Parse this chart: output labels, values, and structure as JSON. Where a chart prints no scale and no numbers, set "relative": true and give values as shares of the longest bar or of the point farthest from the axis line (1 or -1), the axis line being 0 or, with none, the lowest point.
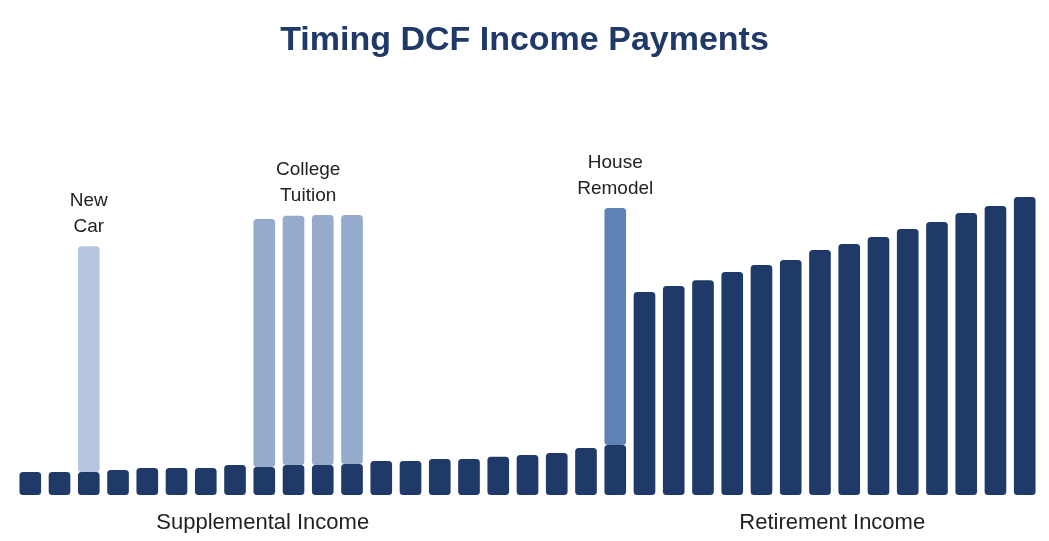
{
  "chart_data": {
    "type": "bar",
    "title": "Timing DCF Income Payments",
    "relative": true,
    "stacked": true,
    "categories": [
      null,
      null,
      null,
      null,
      null,
      null,
      null,
      null,
      null,
      null,
      null,
      null,
      null,
      null,
      null,
      null,
      null,
      null,
      null,
      null,
      null,
      null,
      null,
      null,
      null,
      null,
      null,
      null,
      null,
      null,
      null,
      null,
      null,
      null,
      null
    ],
    "series": [
      {
        "color": "#1f3a68",
        "values": [
          0.077,
          0.077,
          0.077,
          0.084,
          0.091,
          0.091,
          0.091,
          0.101,
          0.094,
          0.101,
          0.101,
          0.104,
          0.114,
          0.114,
          0.121,
          0.121,
          0.128,
          0.134,
          0.141,
          0.158,
          0.168,
          0.681,
          0.701,
          0.721,
          0.748,
          0.772,
          0.789,
          0.822,
          0.842,
          0.866,
          0.893,
          0.916,
          0.946,
          0.97,
          1
        ]
      },
      {
        "name": "New Car",
        "color": "#b5c6de",
        "values": [
          null,
          null,
          0.758,
          null,
          null,
          null,
          null,
          null,
          null,
          null,
          null,
          null,
          null,
          null,
          null,
          null,
          null,
          null,
          null,
          null,
          null,
          null,
          null,
          null,
          null,
          null,
          null,
          null,
          null,
          null,
          null,
          null,
          null,
          null,
          null
        ]
      },
      {
        "name": "College Tuition",
        "color": "#95abcb",
        "values": [
          null,
          null,
          null,
          null,
          null,
          null,
          null,
          null,
          0.832,
          0.836,
          0.839,
          0.836,
          null,
          null,
          null,
          null,
          null,
          null,
          null,
          null,
          null,
          null,
          null,
          null,
          null,
          null,
          null,
          null,
          null,
          null,
          null,
          null,
          null,
          null,
          null
        ]
      },
      {
        "name": "House Remodel",
        "color": "#5f82b5",
        "values": [
          null,
          null,
          null,
          null,
          null,
          null,
          null,
          null,
          null,
          null,
          null,
          null,
          null,
          null,
          null,
          null,
          null,
          null,
          null,
          null,
          0.795,
          null,
          null,
          null,
          null,
          null,
          null,
          null,
          null,
          null,
          null,
          null,
          null,
          null,
          null
        ]
      }
    ],
    "annotations": [
      "Supplemental Income",
      "Retirement Income"
    ],
    "grid": false
  }
}
